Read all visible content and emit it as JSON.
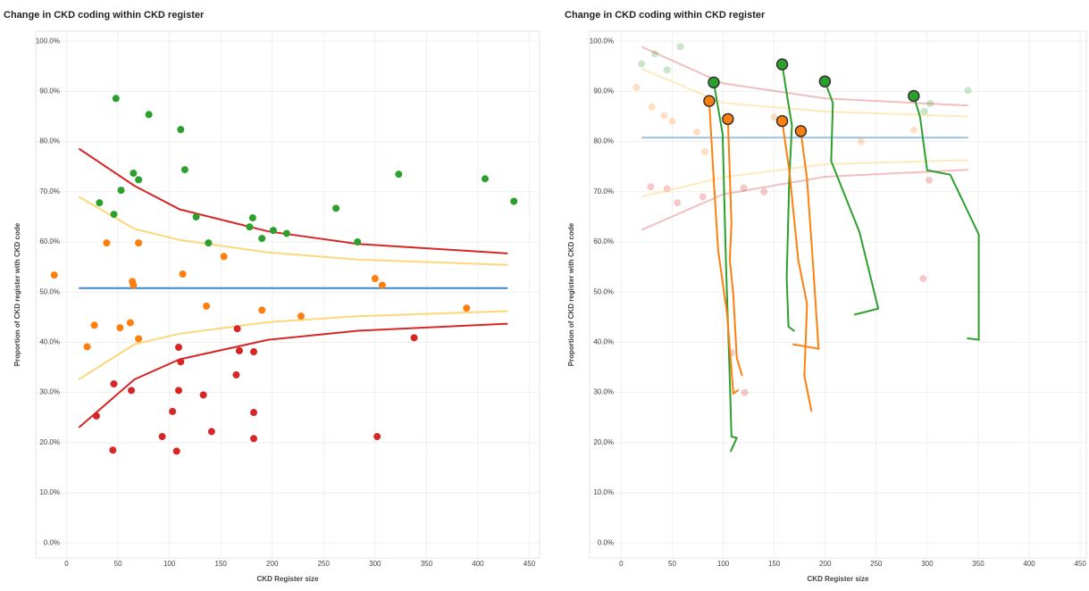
{
  "chart_data": [
    {
      "type": "scatter",
      "title": "Change in CKD coding within CKD register",
      "x_label": "CKD Register size",
      "y_label": "Proportion of CKD register with CKD code",
      "xlim": [
        -30,
        460
      ],
      "ylim": [
        -3,
        102
      ],
      "xticks": [
        0,
        50,
        100,
        150,
        200,
        250,
        300,
        350,
        400,
        450
      ],
      "yticks": [
        {
          "value": 0,
          "label": "0.0%"
        },
        {
          "value": 10,
          "label": "10.0%"
        },
        {
          "value": 20,
          "label": "20.0%"
        },
        {
          "value": 30,
          "label": "30.0%"
        },
        {
          "value": 40,
          "label": "40.0%"
        },
        {
          "value": 50,
          "label": "50.0%"
        },
        {
          "value": 60,
          "label": "60.0%"
        },
        {
          "value": 70,
          "label": "70.0%"
        },
        {
          "value": 80,
          "label": "80.0%"
        },
        {
          "value": 90,
          "label": "90.0%"
        },
        {
          "value": 100,
          "label": "100.0%"
        }
      ],
      "grid": true,
      "series": [
        {
          "mode": "line",
          "color": "#d62728",
          "x": [
            12,
            66,
            110,
            196,
            283,
            429
          ],
          "values": [
            78.6,
            71.2,
            66.5,
            62.1,
            59.6,
            57.7
          ]
        },
        {
          "mode": "line",
          "color": "#fdd77a",
          "x": [
            12,
            66,
            110,
            196,
            283,
            429
          ],
          "values": [
            69,
            62.6,
            60.4,
            57.9,
            56.5,
            55.4
          ]
        },
        {
          "mode": "line",
          "color": "#3a87c8",
          "x": [
            12,
            429
          ],
          "values": [
            50.8,
            50.8
          ]
        },
        {
          "mode": "line",
          "color": "#fdd77a",
          "x": [
            12,
            66,
            110,
            196,
            283,
            429
          ],
          "values": [
            32.6,
            39.6,
            41.7,
            44,
            45.2,
            46.2
          ]
        },
        {
          "mode": "line",
          "color": "#d62728",
          "x": [
            12,
            66,
            110,
            196,
            283,
            429
          ],
          "values": [
            23,
            32.6,
            36.6,
            40.5,
            42.3,
            43.7
          ]
        },
        {
          "mode": "markers",
          "color": "#2ca02c",
          "x": [
            48,
            80,
            111,
            115,
            65,
            70,
            32,
            53,
            46,
            126,
            138,
            181,
            178,
            190,
            201,
            214,
            262,
            283,
            323,
            407,
            435
          ],
          "values": [
            88.6,
            85.4,
            82.4,
            74.4,
            73.7,
            72.4,
            67.8,
            70.3,
            65.5,
            65,
            59.8,
            64.8,
            63,
            60.7,
            62.3,
            61.7,
            66.7,
            60,
            73.5,
            72.6,
            68.1
          ]
        },
        {
          "mode": "markers",
          "color": "#ff7f0e",
          "x": [
            -12,
            27,
            20,
            39,
            52,
            62,
            64,
            65,
            70,
            70,
            113,
            136,
            153,
            190,
            228,
            300,
            307,
            389
          ],
          "values": [
            53.4,
            43.4,
            39.1,
            59.8,
            42.9,
            43.9,
            52.1,
            51.4,
            59.8,
            40.7,
            53.6,
            47.2,
            57.1,
            46.4,
            45.2,
            52.7,
            51.4,
            46.8
          ]
        },
        {
          "mode": "markers",
          "color": "#d62728",
          "x": [
            29,
            46,
            45,
            63,
            93,
            103,
            109,
            109,
            111,
            107,
            133,
            141,
            166,
            168,
            165,
            182,
            182,
            182,
            302,
            338
          ],
          "values": [
            25.3,
            31.7,
            18.5,
            30.4,
            21.2,
            26.2,
            30.4,
            39,
            36.1,
            18.3,
            29.5,
            22.2,
            42.7,
            38.3,
            33.5,
            38.1,
            26,
            20.8,
            21.2,
            40.9
          ]
        }
      ]
    },
    {
      "type": "scatter",
      "title": "Change in CKD coding within CKD register",
      "x_label": "CKD Register size",
      "y_label": "Proportion of CKD register with CKD code",
      "xlim": [
        -31,
        456
      ],
      "ylim": [
        -3,
        102
      ],
      "xticks": [
        0,
        50,
        100,
        150,
        200,
        250,
        300,
        350,
        400,
        450
      ],
      "yticks": [
        {
          "value": 0,
          "label": "0.0%"
        },
        {
          "value": 10,
          "label": "10.0%"
        },
        {
          "value": 20,
          "label": "20.0%"
        },
        {
          "value": 30,
          "label": "30.0%"
        },
        {
          "value": 40,
          "label": "40.0%"
        },
        {
          "value": 50,
          "label": "50.0%"
        },
        {
          "value": 60,
          "label": "60.0%"
        },
        {
          "value": 70,
          "label": "70.0%"
        },
        {
          "value": 80,
          "label": "80.0%"
        },
        {
          "value": 90,
          "label": "90.0%"
        },
        {
          "value": 100,
          "label": "100.0%"
        }
      ],
      "grid": true,
      "series": [
        {
          "mode": "markers",
          "color": "#2ca02c",
          "opacity": 0.25,
          "x": [
            20,
            33,
            45,
            58,
            84,
            297,
            303,
            340
          ],
          "values": [
            95.5,
            97.5,
            94.3,
            98.9,
            88.3,
            86,
            87.6,
            90.2
          ]
        },
        {
          "mode": "markers",
          "color": "#ff7f0e",
          "opacity": 0.25,
          "x": [
            15,
            30,
            42,
            50,
            74,
            82,
            150,
            235,
            287
          ],
          "values": [
            90.8,
            86.9,
            85.2,
            84.1,
            81.9,
            78,
            84.9,
            80,
            82.3
          ]
        },
        {
          "mode": "markers",
          "color": "#d62728",
          "opacity": 0.25,
          "x": [
            29,
            45,
            55,
            80,
            120,
            140,
            108,
            121,
            296,
            302
          ],
          "values": [
            71,
            70.6,
            67.8,
            69,
            70.8,
            70,
            37.9,
            30,
            52.7,
            72.3
          ]
        },
        {
          "mode": "line",
          "color": "#d62728",
          "opacity": 0.3,
          "x": [
            20,
            100,
            200,
            340
          ],
          "values": [
            98.9,
            91.6,
            88.6,
            87.2
          ]
        },
        {
          "mode": "line",
          "color": "#fdd77a",
          "opacity": 0.5,
          "x": [
            20,
            100,
            200,
            340
          ],
          "values": [
            94.5,
            87.7,
            86,
            85
          ]
        },
        {
          "mode": "line",
          "color": "#3a87c8",
          "opacity": 0.5,
          "x": [
            20,
            340
          ],
          "values": [
            80.8,
            80.8
          ]
        },
        {
          "mode": "line",
          "color": "#fdd77a",
          "opacity": 0.5,
          "x": [
            20,
            100,
            200,
            340
          ],
          "values": [
            69,
            72.9,
            75.5,
            76.3
          ]
        },
        {
          "mode": "line",
          "color": "#d62728",
          "opacity": 0.3,
          "x": [
            20,
            100,
            200,
            340
          ],
          "values": [
            62.4,
            69.5,
            73,
            74.4
          ]
        },
        {
          "mode": "line",
          "color": "#2ca02c",
          "x": [
            90.7,
            99.4,
            102.8,
            106.3,
            108.1,
            113.3,
            107.2
          ],
          "values": [
            91.8,
            81.5,
            54.7,
            33.3,
            21.2,
            20.9,
            18.2
          ]
        },
        {
          "mode": "line",
          "color": "#2ca02c",
          "x": [
            157.8,
            163,
            167.4,
            164.8,
            162.2,
            164,
            170
          ],
          "values": [
            95.4,
            88.6,
            83.2,
            72.5,
            52.9,
            43.1,
            42.2
          ]
        },
        {
          "mode": "line",
          "color": "#2ca02c",
          "x": [
            199.7,
            207.5,
            205.8,
            233.7,
            252,
            228.4
          ],
          "values": [
            92,
            87.7,
            76.1,
            61.9,
            46.7,
            45.5
          ]
        },
        {
          "mode": "line",
          "color": "#2ca02c",
          "x": [
            286.8,
            292.9,
            299.9,
            322.6,
            350.5,
            350.5,
            339.1
          ],
          "values": [
            89.1,
            85,
            74.3,
            73.4,
            61.5,
            40.5,
            40.8
          ]
        },
        {
          "mode": "line",
          "color": "#ff7f0e",
          "x": [
            86.3,
            90.7,
            95,
            103.7,
            109.9,
            115.1
          ],
          "values": [
            88.1,
            72.5,
            58.3,
            45.8,
            29.8,
            30.5
          ]
        },
        {
          "mode": "line",
          "color": "#ff7f0e",
          "x": [
            104.6,
            108.1,
            106.4,
            109.9,
            113.3,
            118.6
          ],
          "values": [
            84.5,
            63.6,
            56.5,
            49.4,
            36.9,
            33.3
          ]
        },
        {
          "mode": "line",
          "color": "#ff7f0e",
          "x": [
            157.8,
            164.8,
            173.5,
            182.2,
            179.6,
            186.6
          ],
          "values": [
            84.1,
            74.3,
            56.5,
            47.6,
            33.3,
            26.2
          ]
        },
        {
          "mode": "line",
          "color": "#ff7f0e",
          "x": [
            176.1,
            182.2,
            188.3,
            193.5,
            168.2
          ],
          "values": [
            82.1,
            72.5,
            54.7,
            38.7,
            39.6
          ]
        },
        {
          "mode": "markers",
          "color": "#2ca02c",
          "size": 6,
          "stroke": "#333",
          "x": [
            90.7,
            157.8,
            199.7,
            286.8
          ],
          "values": [
            91.8,
            95.4,
            92,
            89.1
          ]
        },
        {
          "mode": "markers",
          "color": "#ff7f0e",
          "size": 6,
          "stroke": "#333",
          "x": [
            86.3,
            104.6,
            157.8,
            176.1
          ],
          "values": [
            88.1,
            84.5,
            84.1,
            82.1
          ]
        }
      ]
    }
  ]
}
